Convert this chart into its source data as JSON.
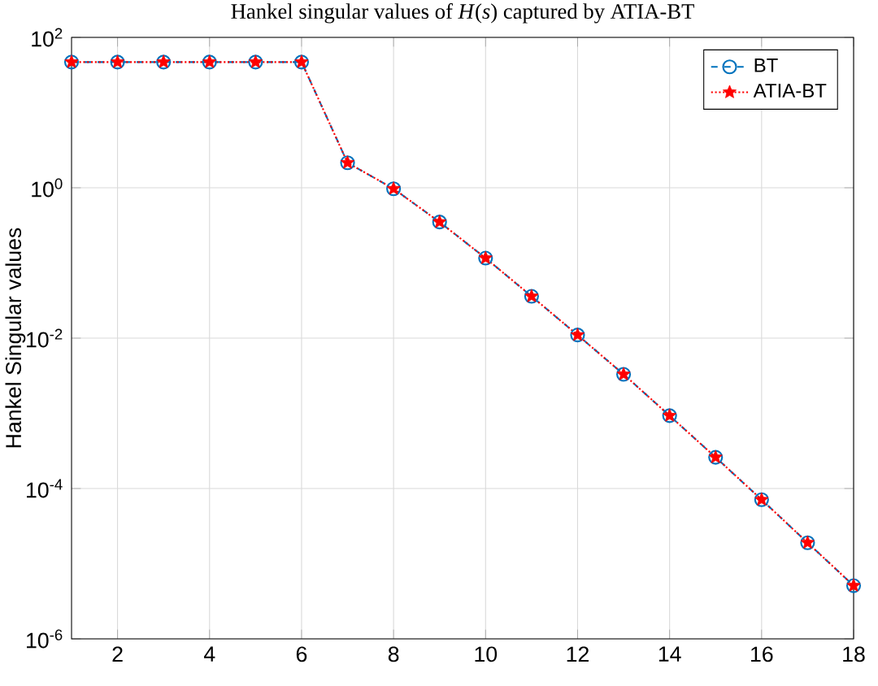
{
  "chart_data": {
    "type": "line",
    "title": "Hankel singular values of *H*(*s*) captured by ATIA-BT",
    "ylabel": "Hankel Singular values",
    "x": [
      1,
      2,
      3,
      4,
      5,
      6,
      7,
      8,
      9,
      10,
      11,
      12,
      13,
      14,
      15,
      16,
      17,
      18
    ],
    "series": [
      {
        "name": "BT",
        "color": "#0072bd",
        "marker": "circle",
        "line_style": "dashed",
        "values": [
          47,
          47,
          47,
          47,
          47,
          47,
          2.15,
          0.97,
          0.35,
          0.116,
          0.036,
          0.011,
          0.0033,
          0.00093,
          0.00026,
          7.1e-05,
          1.9e-05,
          5.1e-06
        ]
      },
      {
        "name": "ATIA-BT",
        "color": "#ff0000",
        "marker": "star",
        "line_style": "dotted",
        "values": [
          47,
          47,
          47,
          47,
          47,
          47,
          2.15,
          0.97,
          0.35,
          0.116,
          0.036,
          0.011,
          0.0033,
          0.00093,
          0.00026,
          7.1e-05,
          1.9e-05,
          5.1e-06
        ]
      }
    ],
    "log": "y",
    "xlim": [
      1,
      18
    ],
    "ylim": [
      1e-06,
      100
    ],
    "xticks": [
      2,
      4,
      6,
      8,
      10,
      12,
      14,
      16,
      18
    ],
    "yticks": [
      {
        "value": 1e-06,
        "label": "10$^{-6}$"
      },
      {
        "value": 0.0001,
        "label": "10$^{-4}$"
      },
      {
        "value": 0.01,
        "label": "10$^{-2}$"
      },
      {
        "value": 1,
        "label": "10$^{0}$"
      },
      {
        "value": 100,
        "label": "10$^{2}$"
      }
    ],
    "grid": true,
    "legend": "top right"
  }
}
